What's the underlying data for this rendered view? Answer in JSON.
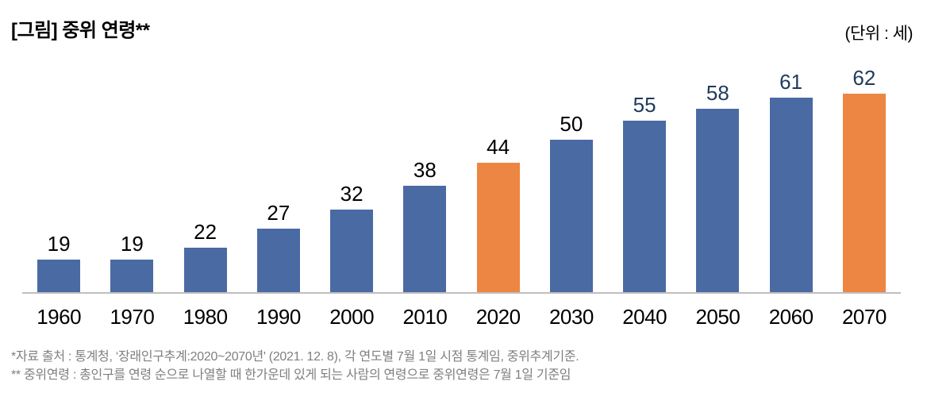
{
  "header": {
    "title": "[그림] 중위 연령**",
    "unit_label": "(단위 : 세)"
  },
  "colors": {
    "bar_blue": "#4A6AA4",
    "bar_orange": "#ED8642",
    "value_label_black": "#000000",
    "value_label_navy": "#1F3A5C",
    "axis_line": "#BFBFBF",
    "footnote_gray": "#7F7F7F"
  },
  "chart_data": {
    "type": "bar",
    "title": "[그림] 중위 연령**",
    "unit": "세",
    "categories": [
      "1960",
      "1970",
      "1980",
      "1990",
      "2000",
      "2010",
      "2020",
      "2030",
      "2040",
      "2050",
      "2060",
      "2070"
    ],
    "values": [
      19,
      19,
      22,
      27,
      32,
      38,
      44,
      50,
      55,
      58,
      61,
      62
    ],
    "highlighted_categories": [
      "2020",
      "2070"
    ],
    "highlighted_indices": [
      6,
      11
    ],
    "navy_value_label_indices": [
      8,
      9,
      10,
      11
    ],
    "xlabel": "",
    "ylabel": "",
    "ylim": [
      10.5,
      64
    ],
    "grid": false,
    "legend": false,
    "data_labels": true
  },
  "footnotes": {
    "line1": "*자료 출처 : 통계청, ‘장래인구추계:2020~2070년' (2021. 12. 8), 각 연도별 7월 1일 시점 통계임, 중위추계기준.",
    "line2": "** 중위연령 : 총인구를 연령 순으로 나열할 때 한가운데 있게 되는 사람의 연령으로 중위연령은 7월 1일 기준임"
  }
}
